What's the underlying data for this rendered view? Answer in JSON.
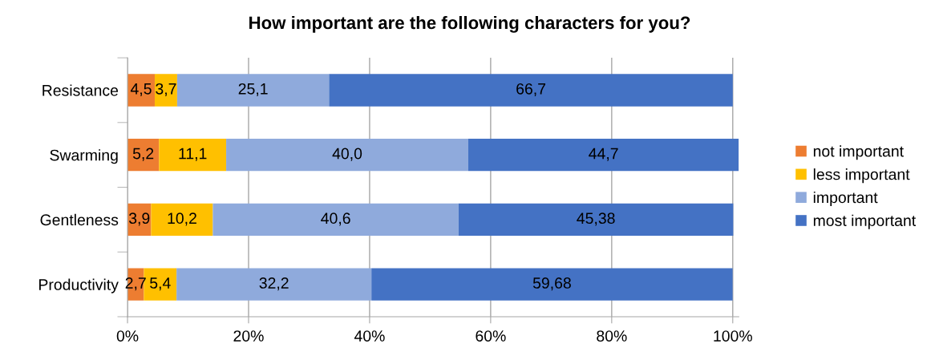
{
  "chart_data": {
    "type": "bar",
    "orientation": "horizontal",
    "stacked": true,
    "title": "How important are the following characters for you?",
    "categories": [
      "Resistance",
      "Swarming",
      "Gentleness",
      "Productivity"
    ],
    "series": [
      {
        "name": "not important",
        "color": "#ed7d31",
        "values": [
          4.5,
          5.2,
          3.9,
          2.7
        ],
        "value_labels": [
          "4,5",
          "5,2",
          "3,9",
          "2,7"
        ]
      },
      {
        "name": "less important",
        "color": "#ffc000",
        "values": [
          3.7,
          11.1,
          10.2,
          5.4
        ],
        "value_labels": [
          "3,7",
          "11,1",
          "10,2",
          "5,4"
        ]
      },
      {
        "name": "important",
        "color": "#8faadc",
        "values": [
          25.1,
          40.0,
          40.6,
          32.2
        ],
        "value_labels": [
          "25,1",
          "40,0",
          "40,6",
          "32,2"
        ]
      },
      {
        "name": "most important",
        "color": "#4472c4",
        "values": [
          66.7,
          44.7,
          45.38,
          59.68
        ],
        "value_labels": [
          "66,7",
          "44,7",
          "45,38",
          "59,68"
        ]
      }
    ],
    "xlim": [
      0,
      101
    ],
    "xticks": [
      {
        "value": 0,
        "label": "0%"
      },
      {
        "value": 20,
        "label": "20%"
      },
      {
        "value": 40,
        "label": "40%"
      },
      {
        "value": 60,
        "label": "60%"
      },
      {
        "value": 80,
        "label": "80%"
      },
      {
        "value": 100,
        "label": "100%"
      }
    ],
    "grid": "x",
    "legend": "right"
  }
}
